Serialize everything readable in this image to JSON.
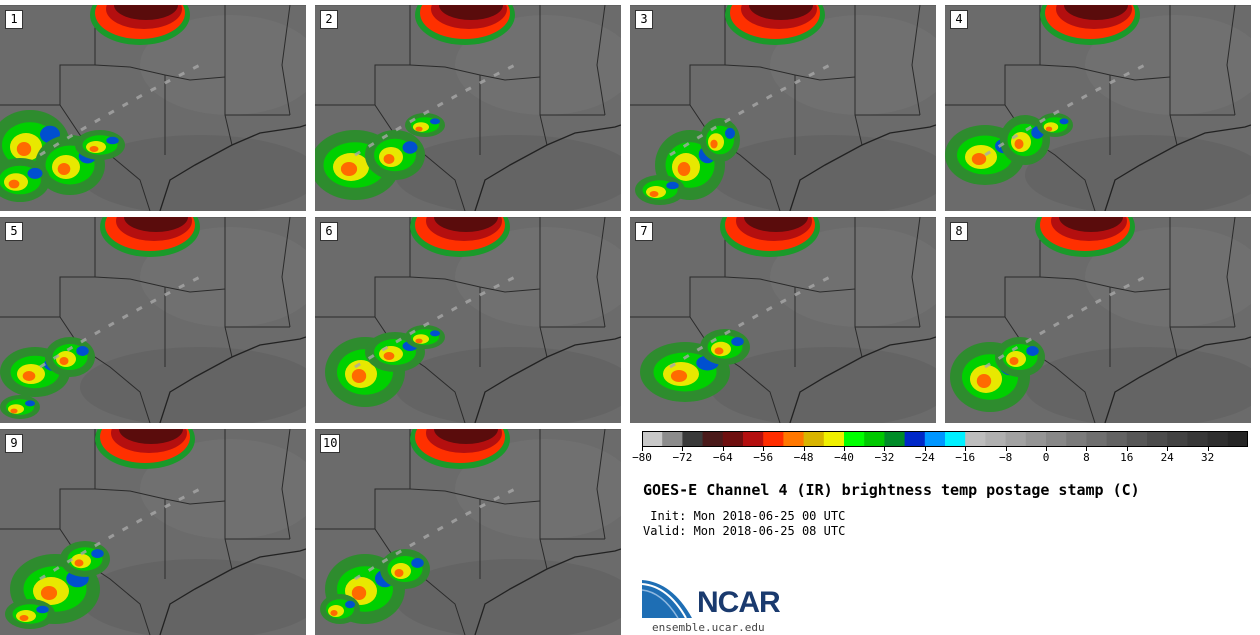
{
  "panels": [
    {
      "label": "1"
    },
    {
      "label": "2"
    },
    {
      "label": "3"
    },
    {
      "label": "4"
    },
    {
      "label": "5"
    },
    {
      "label": "6"
    },
    {
      "label": "7"
    },
    {
      "label": "8"
    },
    {
      "label": "9"
    },
    {
      "label": "10"
    }
  ],
  "colorbar": {
    "colors": [
      "#c8c8c8",
      "#8c8c8c",
      "#3a3a3a",
      "#4a1a1a",
      "#6e0f0f",
      "#b40f0f",
      "#ff2d00",
      "#ff7700",
      "#d8b400",
      "#f0f000",
      "#00ff00",
      "#00c800",
      "#008c28",
      "#0028c8",
      "#0096ff",
      "#00f0ff",
      "#bdbdbd",
      "#b0b0b0",
      "#a2a2a2",
      "#959595",
      "#888888",
      "#7b7b7b",
      "#6f6f6f",
      "#636363",
      "#575757",
      "#4c4c4c",
      "#424242",
      "#383838",
      "#2f2f2f",
      "#262626"
    ],
    "min": -80,
    "max": 40,
    "ticks": [
      "−80",
      "−72",
      "−64",
      "−56",
      "−48",
      "−40",
      "−32",
      "−24",
      "−16",
      "−8",
      "0",
      "8",
      "16",
      "24",
      "32"
    ],
    "tick_values": [
      -80,
      -72,
      -64,
      -56,
      -48,
      -40,
      -32,
      -24,
      -16,
      -8,
      0,
      8,
      16,
      24,
      32
    ]
  },
  "title": "GOES-E Channel 4 (IR) brightness temp postage stamp (C)",
  "init": " Init: Mon 2018-06-25 00 UTC",
  "valid": "Valid: Mon 2018-06-25 08 UTC",
  "logo": {
    "name": "NCAR",
    "color": "#1a3a6e",
    "accent": "#1e6eb4"
  },
  "site": "ensemble.ucar.edu"
}
